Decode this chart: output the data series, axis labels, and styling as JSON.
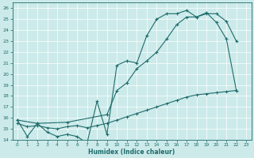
{
  "xlabel": "Humidex (Indice chaleur)",
  "xlim": [
    -0.5,
    23.5
  ],
  "ylim": [
    14,
    26.5
  ],
  "yticks": [
    14,
    15,
    16,
    17,
    18,
    19,
    20,
    21,
    22,
    23,
    24,
    25,
    26
  ],
  "xticks": [
    0,
    1,
    2,
    3,
    4,
    5,
    6,
    7,
    8,
    9,
    10,
    11,
    12,
    13,
    14,
    15,
    16,
    17,
    18,
    19,
    20,
    21,
    22,
    23
  ],
  "bg_color": "#cceaea",
  "line_color": "#1e6b6b",
  "curve_zigzag": {
    "x": [
      0,
      1,
      2,
      3,
      4,
      5,
      6,
      7,
      8,
      9,
      10,
      11,
      12,
      13,
      14,
      15,
      16,
      17,
      18,
      19,
      20,
      21,
      22
    ],
    "y": [
      15.8,
      14.3,
      15.5,
      14.7,
      14.3,
      14.5,
      14.3,
      13.7,
      17.5,
      14.5,
      20.8,
      21.2,
      21.0,
      23.5,
      25.0,
      25.5,
      25.5,
      25.8,
      25.2,
      25.6,
      24.7,
      23.2,
      18.5
    ]
  },
  "curve_smooth": {
    "x": [
      0,
      2,
      5,
      9,
      10,
      11,
      12,
      13,
      14,
      15,
      16,
      17,
      18,
      19,
      20,
      21,
      22
    ],
    "y": [
      15.8,
      15.5,
      15.6,
      16.3,
      18.5,
      19.2,
      20.5,
      21.2,
      22.0,
      23.2,
      24.5,
      25.2,
      25.2,
      25.5,
      25.5,
      24.8,
      23.0
    ]
  },
  "curve_flat": {
    "x": [
      0,
      1,
      2,
      3,
      4,
      5,
      6,
      7,
      8,
      9,
      10,
      11,
      12,
      13,
      14,
      15,
      16,
      17,
      18,
      19,
      20,
      21,
      22
    ],
    "y": [
      15.5,
      15.2,
      15.3,
      15.1,
      15.0,
      15.2,
      15.3,
      15.1,
      15.3,
      15.5,
      15.8,
      16.1,
      16.4,
      16.7,
      17.0,
      17.3,
      17.6,
      17.9,
      18.1,
      18.2,
      18.3,
      18.4,
      18.5
    ]
  }
}
